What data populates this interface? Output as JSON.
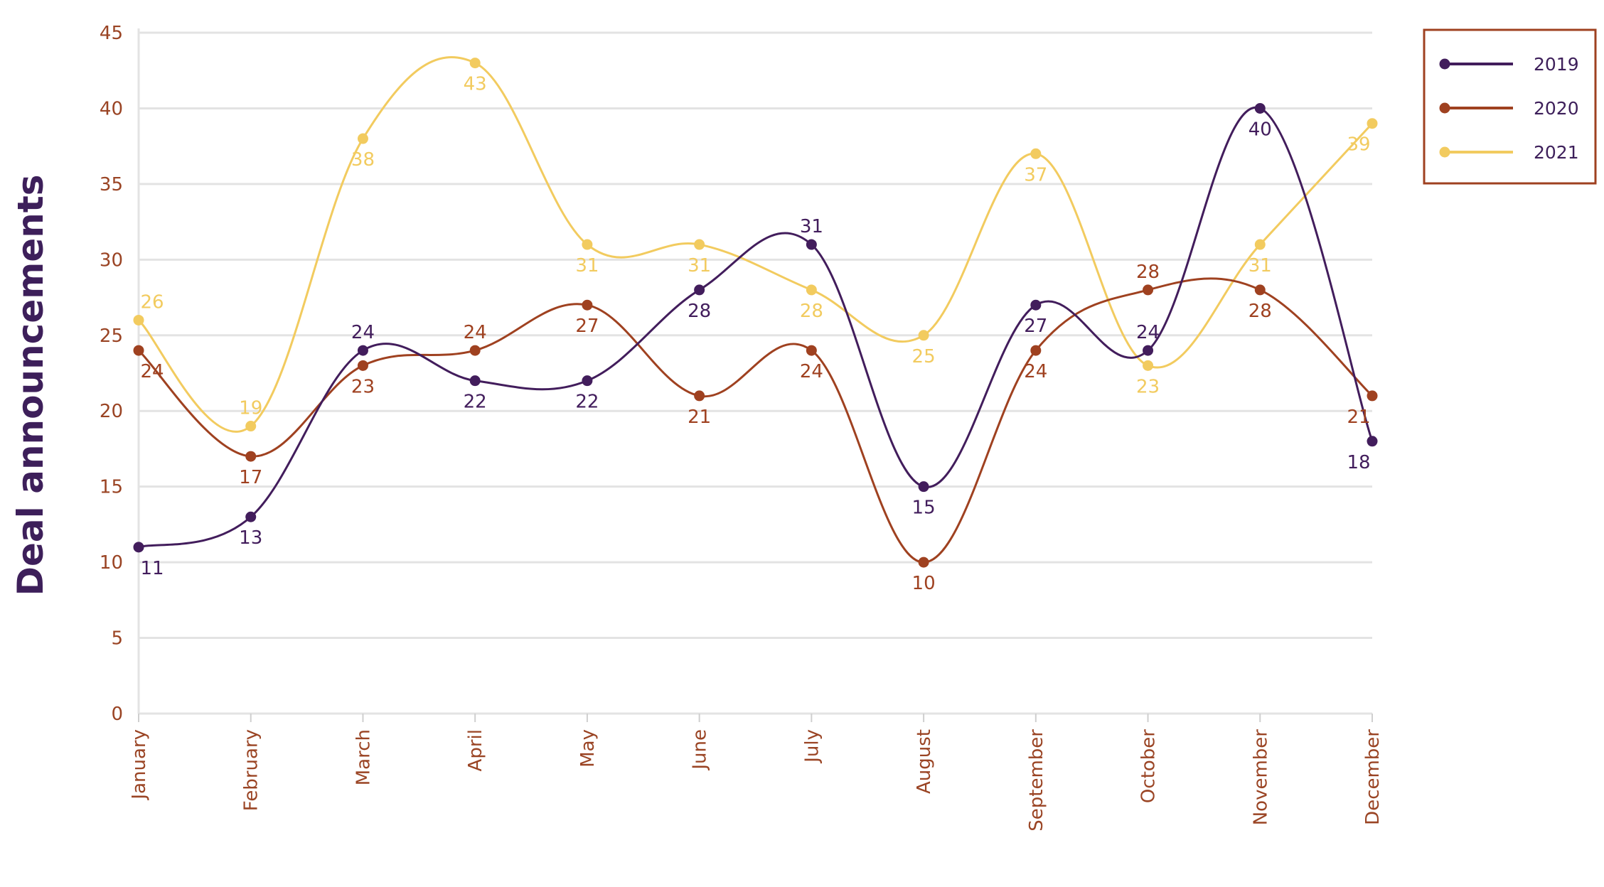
{
  "chart_data": {
    "type": "line",
    "title": "",
    "xlabel": "",
    "ylabel": "Deal announcements",
    "ylim": [
      0,
      45
    ],
    "yticks": [
      0,
      5,
      10,
      15,
      20,
      25,
      30,
      35,
      40,
      45
    ],
    "grid": "horizontal",
    "legend": "top-right",
    "curve": "smooth",
    "categories": [
      "January",
      "February",
      "March",
      "April",
      "May",
      "June",
      "July",
      "August",
      "September",
      "October",
      "November",
      "December"
    ],
    "series": [
      {
        "name": "2019",
        "color": "#421d5c",
        "values": [
          11,
          13,
          24,
          22,
          22,
          28,
          31,
          15,
          27,
          24,
          40,
          18
        ],
        "label_pos": [
          "below",
          "below",
          "above",
          "below",
          "below",
          "below",
          "above",
          "below",
          "below",
          "above",
          "below",
          "below"
        ]
      },
      {
        "name": "2020",
        "color": "#9f4120",
        "values": [
          24,
          17,
          23,
          24,
          27,
          21,
          24,
          10,
          24,
          28,
          28,
          21
        ],
        "label_pos": [
          "below",
          "below",
          "below",
          "above",
          "below",
          "below",
          "below",
          "below",
          "below",
          "above",
          "below",
          "below"
        ]
      },
      {
        "name": "2021",
        "color": "#f2cb5f",
        "values": [
          26,
          19,
          38,
          43,
          31,
          31,
          28,
          25,
          37,
          23,
          31,
          39
        ],
        "label_pos": [
          "above",
          "above",
          "below",
          "below",
          "below",
          "below",
          "below",
          "below",
          "below",
          "below",
          "below",
          "below"
        ]
      }
    ]
  }
}
